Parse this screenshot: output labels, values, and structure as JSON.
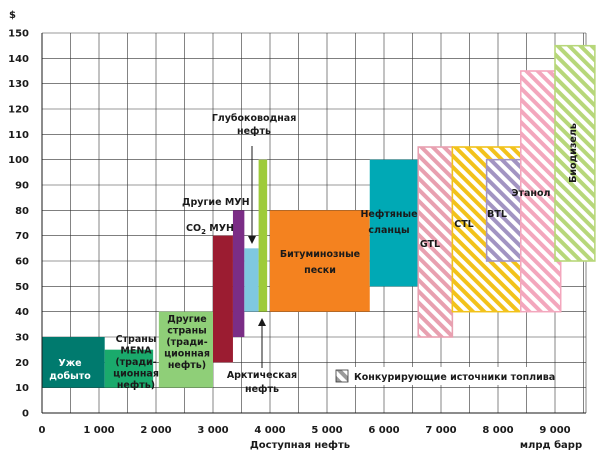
{
  "chart_data": {
    "type": "bar",
    "subtype": "variable-width cost-supply curve",
    "ylabel": "$",
    "xlabel": "Доступная нефть",
    "xunit": "млрд барр",
    "xlim": [
      0,
      9000
    ],
    "ylim": [
      0,
      150
    ],
    "xticks": [
      0,
      1000,
      2000,
      3000,
      4000,
      5000,
      6000,
      7000,
      8000,
      9000
    ],
    "xtick_labels": [
      "0",
      "1 000",
      "2 000",
      "3 000",
      "4 000",
      "5 000",
      "6 000",
      "7 000",
      "8 000",
      "9 000"
    ],
    "yticks": [
      0,
      10,
      20,
      30,
      40,
      50,
      60,
      70,
      80,
      90,
      100,
      110,
      120,
      130,
      140,
      150
    ],
    "grid": true,
    "legend": {
      "position": "bottom-right",
      "entries": [
        {
          "label": "Конкурирующие источники топлива",
          "pattern": "hatched"
        }
      ]
    },
    "series": [
      {
        "name": "Уже добыто",
        "label_lines": [
          "Уже",
          "добыто"
        ],
        "x0": 0,
        "x1": 1100,
        "y0": 10,
        "y1": 30,
        "color": "#007a6e",
        "hatched": false,
        "label_color": "#ffffff"
      },
      {
        "name": "Страны MENA (традиционная нефть)",
        "label_lines": [
          "Страны",
          "MENA",
          "(тради-",
          "ционная",
          "нефть)"
        ],
        "x0": 1100,
        "x1": 1950,
        "y0": 10,
        "y1": 25,
        "color": "#1aaa6c",
        "hatched": false,
        "label_color": "#1a1a1a"
      },
      {
        "name": "Другие страны (традиционная нефть)",
        "label_lines": [
          "Другие",
          "страны",
          "(тради-",
          "ционная",
          "нефть)"
        ],
        "x0": 2050,
        "x1": 3000,
        "y0": 10,
        "y1": 40,
        "color": "#8fcf78",
        "hatched": false,
        "label_color": "#1a1a1a"
      },
      {
        "name": "CO2 МУН",
        "label_lines": [
          "CO",
          "2",
          " МУН"
        ],
        "x0": 3000,
        "x1": 3350,
        "y0": 20,
        "y1": 70,
        "color": "#9b1c31",
        "hatched": false,
        "label_color": "#1a1a1a"
      },
      {
        "name": "Другие МУН",
        "label_lines": [
          "Другие МУН"
        ],
        "x0": 3350,
        "x1": 3550,
        "y0": 30,
        "y1": 80,
        "color": "#7b2d86",
        "hatched": false,
        "label_color": "#1a1a1a"
      },
      {
        "name": "Арктическая нефть",
        "label_lines": [
          "Арктическая",
          "нефть"
        ],
        "x0": 3550,
        "x1": 3800,
        "y0": 40,
        "y1": 65,
        "color": "#7fc8df",
        "hatched": false,
        "label_color": "#1a1a1a"
      },
      {
        "name": "Глубоководная нефть",
        "label_lines": [
          "Глубоководная",
          "нефть"
        ],
        "x0": 3800,
        "x1": 3950,
        "y0": 40,
        "y1": 100,
        "color": "#9ecb3a",
        "hatched": false,
        "label_color": "#1a1a1a"
      },
      {
        "name": "Битуминозные пески",
        "label_lines": [
          "Битуминозные",
          "пески"
        ],
        "x0": 4000,
        "x1": 5750,
        "y0": 40,
        "y1": 80,
        "color": "#f4821f",
        "hatched": false,
        "label_color": "#1a1a1a"
      },
      {
        "name": "Нефтяные сланцы",
        "label_lines": [
          "Нефтяные",
          "сланцы"
        ],
        "x0": 5750,
        "x1": 6600,
        "y0": 50,
        "y1": 100,
        "color": "#00a9b5",
        "hatched": false,
        "label_color": "#1a1a1a"
      },
      {
        "name": "GTL",
        "label_lines": [
          "GTL"
        ],
        "x0": 6600,
        "x1": 7200,
        "y0": 30,
        "y1": 105,
        "color": "#e8a0b0",
        "hatched": true,
        "label_color": "#1a1a1a"
      },
      {
        "name": "CTL",
        "label_lines": [
          "CTL"
        ],
        "x0": 7200,
        "x1": 8400,
        "y0": 40,
        "y1": 105,
        "color": "#f2c21b",
        "hatched": true,
        "label_color": "#1a1a1a"
      },
      {
        "name": "BTL",
        "label_lines": [
          "BTL"
        ],
        "x0": 7800,
        "x1": 8400,
        "y0": 60,
        "y1": 100,
        "color": "#a294c2",
        "hatched": true,
        "label_color": "#1a1a1a"
      },
      {
        "name": "Этанол",
        "label_lines": [
          "Этанол"
        ],
        "x0": 8400,
        "x1": 9100,
        "y0": 40,
        "y1": 135,
        "color": "#f3a7bd",
        "hatched": true,
        "label_color": "#1a1a1a"
      },
      {
        "name": "Биодизель",
        "label_lines": [
          "Биодизель"
        ],
        "x0": 9000,
        "x1": 9700,
        "y0": 60,
        "y1": 145,
        "color": "#b7d77a",
        "hatched": true,
        "label_color": "#1a1a1a"
      }
    ]
  }
}
